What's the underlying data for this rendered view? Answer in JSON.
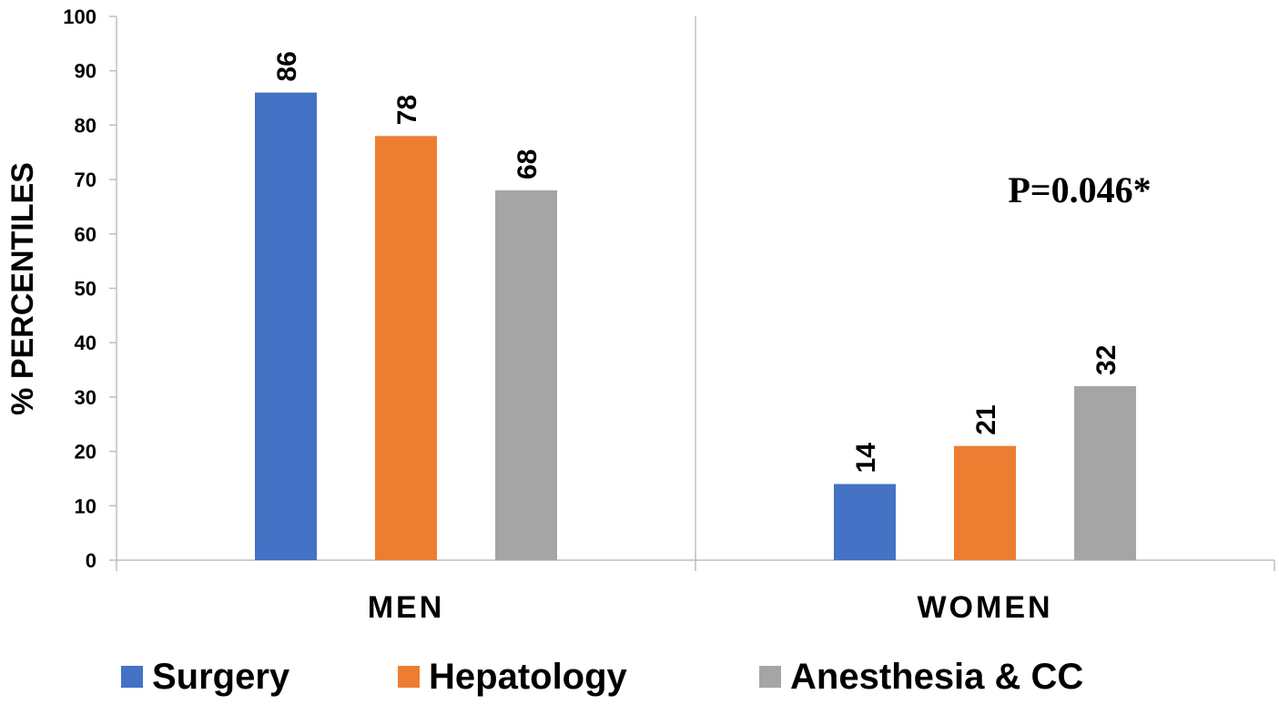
{
  "chart_data": {
    "type": "bar",
    "categories": [
      "MEN",
      "WOMEN"
    ],
    "series": [
      {
        "name": "Surgery",
        "values": [
          86,
          14
        ],
        "color": "#4472C4"
      },
      {
        "name": "Hepatology",
        "values": [
          78,
          21
        ],
        "color": "#ED7D31"
      },
      {
        "name": "Anesthesia & CC",
        "values": [
          68,
          32
        ],
        "color": "#A5A5A5"
      }
    ],
    "ylabel": "% PERCENTILES",
    "xlabel": "",
    "ylim": [
      0,
      100
    ],
    "yticks": [
      "0",
      "10",
      "20",
      "30",
      "40",
      "50",
      "60",
      "70",
      "80",
      "90",
      "100"
    ],
    "annotation": "P=0.046*",
    "legend_position": "bottom",
    "grid": false
  }
}
